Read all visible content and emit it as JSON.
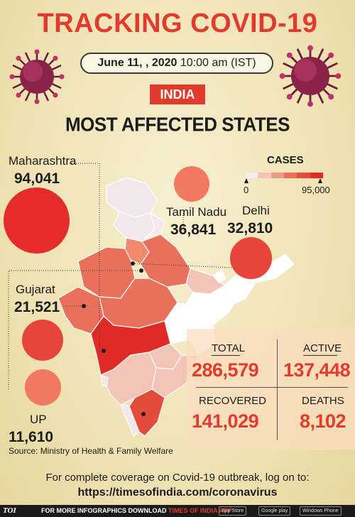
{
  "header": {
    "title": "TRACKING COVID-19",
    "date": "June 11, , 2020",
    "time": "10:00 am (IST)",
    "country": "INDIA",
    "subtitle": "MOST AFFECTED STATES"
  },
  "states": [
    {
      "name": "Maharashtra",
      "cases": "94,041"
    },
    {
      "name": "Tamil Nadu",
      "cases": "36,841"
    },
    {
      "name": "Delhi",
      "cases": "32,810"
    },
    {
      "name": "Gujarat",
      "cases": "21,521"
    },
    {
      "name": "UP",
      "cases": "11,610"
    }
  ],
  "legend": {
    "title": "CASES",
    "min": "0",
    "max": "95,000",
    "colors": [
      "#f4ecee",
      "#f5c4b8",
      "#f09a84",
      "#e9705a",
      "#e34b3a",
      "#e02a26"
    ]
  },
  "stats": {
    "total_label": "TOTAL",
    "total": "286,579",
    "active_label": "ACTIVE",
    "active": "137,448",
    "recovered_label": "RECOVERED",
    "recovered": "141,029",
    "deaths_label": "DEATHS",
    "deaths": "8,102"
  },
  "source": "Source: Ministry of Health & Family Welfare",
  "coverage": {
    "text": "For complete coverage on Covid-19 outbreak, log on to:",
    "url": "https://timesofindia.com/coronavirus"
  },
  "footer": {
    "brand": "TOI",
    "promo_prefix": "FOR MORE  INFOGRAPHICS DOWNLOAD",
    "promo_app": "TIMES OF INDIA  APP",
    "stores": [
      "App Store",
      "Google play",
      "Windows Phone"
    ]
  },
  "colors": {
    "accent_red": "#e23b2e",
    "bubble_red": "#e42d2a",
    "bubble_salmon": "#ef7a5f"
  }
}
